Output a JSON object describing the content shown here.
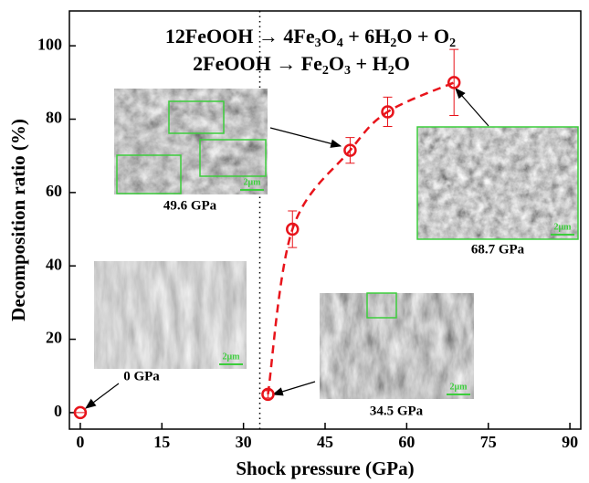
{
  "chart_data": {
    "type": "scatter",
    "x_label": "Shock pressure  (GPa)",
    "y_label": "Decomposition ratio (%)",
    "x": [
      0,
      34.5,
      39,
      49.6,
      56.5,
      68.7
    ],
    "values": [
      0,
      5,
      50,
      71.5,
      82,
      90
    ],
    "errors": [
      0,
      1,
      5,
      3.5,
      4,
      9
    ],
    "color": "#e8141b",
    "xlim": [
      -2,
      92
    ],
    "ylim": [
      -4.5,
      109.5
    ],
    "xticks": [
      0,
      15,
      30,
      45,
      60,
      75,
      90
    ],
    "yticks": [
      0,
      20,
      40,
      60,
      80,
      100
    ],
    "threshold_x": 33,
    "equations": [
      [
        {
          "text": "12FeOOH → 4Fe"
        },
        {
          "sub": "3"
        },
        {
          "text": "O"
        },
        {
          "sub": "4"
        },
        {
          "text": " + 6H"
        },
        {
          "sub": "2"
        },
        {
          "text": "O + O"
        },
        {
          "sub": "2"
        }
      ],
      [
        {
          "text": "2FeOOH → Fe"
        },
        {
          "sub": "2"
        },
        {
          "text": "O"
        },
        {
          "sub": "3"
        },
        {
          "text": " + H"
        },
        {
          "sub": "2"
        },
        {
          "text": "O"
        }
      ]
    ],
    "insets": [
      {
        "label": "0 GPa",
        "scale": "2μm"
      },
      {
        "label": "34.5 GPa",
        "scale": "2μm"
      },
      {
        "label": "49.6 GPa",
        "scale": "2μm"
      },
      {
        "label": "68.7 GPa",
        "scale": "2μm"
      }
    ]
  }
}
